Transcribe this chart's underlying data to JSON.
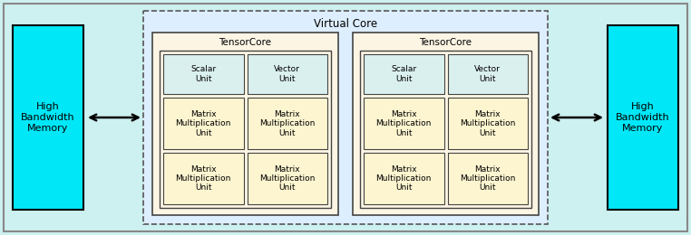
{
  "fig_w": 7.62,
  "fig_h": 2.6,
  "dpi": 100,
  "bg_color": "#cdf0f0",
  "outer_bg": "#cdf0f0",
  "outer_edge": "#888888",
  "vc_bg": "#ddeeff",
  "vc_edge": "#555555",
  "vc_label": "Virtual Core",
  "tc_bg": "#fdf5e4",
  "tc_edge": "#444444",
  "tc_label": "TensorCore",
  "inner_bg": "#fdf5e4",
  "inner_edge": "#444444",
  "unit_bg_sv": "#daf0ee",
  "unit_bg_mmu": "#fdf5d0",
  "unit_edge": "#444444",
  "hbm_bg": "#00e8f8",
  "hbm_edge": "#000000",
  "hbm_label": "High\nBandwidth\nMemory",
  "scalar_label": "Scalar\nUnit",
  "vector_label": "Vector\nUnit",
  "mmu_label": "Matrix\nMultiplication\nUnit",
  "arrow_color": "#000000",
  "fs_small": 6.5,
  "fs_tc": 7.5,
  "fs_vc": 8.5,
  "fs_hbm": 8.0
}
